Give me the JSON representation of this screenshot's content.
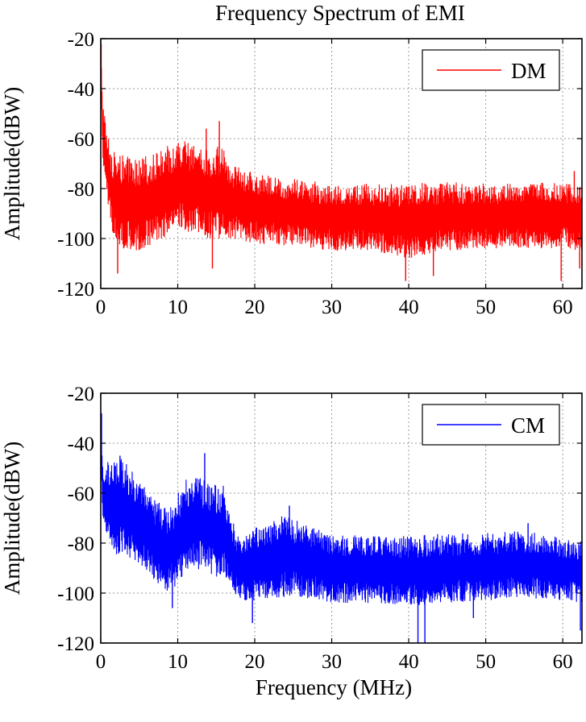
{
  "figure": {
    "title": "Frequency Spectrum of EMI",
    "xlabel": "Frequency (MHz)"
  },
  "chart_data": [
    {
      "type": "line",
      "name": "DM",
      "color": "#ff0000",
      "title": "Frequency Spectrum of EMI",
      "ylabel": "Amplitude(dBW)",
      "xlabel": "",
      "xlim": [
        0,
        62.5
      ],
      "ylim": [
        -120,
        -20
      ],
      "xticks": [
        0,
        10,
        20,
        30,
        40,
        50,
        60
      ],
      "yticks": [
        -20,
        -40,
        -60,
        -80,
        -100,
        -120
      ],
      "xtick_labels": [
        "0",
        "10",
        "20",
        "30",
        "40",
        "50",
        "60"
      ],
      "ytick_labels": [
        "-20",
        "-40",
        "-60",
        "-80",
        "-100",
        "-120"
      ],
      "grid": true,
      "legend": {
        "position": "top-right",
        "entries": [
          "DM"
        ]
      },
      "series": [
        {
          "name": "DM",
          "color": "#ff0000",
          "envelope": {
            "x": [
              0,
              0.3,
              0.7,
              1.5,
              3,
              5,
              8,
              10,
              11,
              12,
              14,
              15,
              16,
              17,
              20,
              25,
              30,
              35,
              40,
              45,
              50,
              55,
              60,
              62.5
            ],
            "upper": [
              -25,
              -45,
              -55,
              -65,
              -67,
              -68,
              -64,
              -61,
              -60,
              -62,
              -65,
              -63,
              -64,
              -70,
              -74,
              -76,
              -78,
              -78,
              -78,
              -77,
              -78,
              -78,
              -77,
              -79
            ],
            "lower": [
              -40,
              -70,
              -80,
              -100,
              -105,
              -105,
              -100,
              -98,
              -97,
              -98,
              -100,
              -100,
              -100,
              -100,
              -102,
              -103,
              -105,
              -105,
              -108,
              -105,
              -104,
              -104,
              -104,
              -105
            ]
          },
          "peaks": [
            {
              "x": 0.05,
              "y": -22
            },
            {
              "x": 15.4,
              "y": -53
            },
            {
              "x": 13.7,
              "y": -56
            },
            {
              "x": 61.5,
              "y": -73
            }
          ],
          "dips": [
            {
              "x": 2.2,
              "y": -114
            },
            {
              "x": 14.5,
              "y": -112
            },
            {
              "x": 39.6,
              "y": -117
            },
            {
              "x": 43.2,
              "y": -115
            },
            {
              "x": 59.8,
              "y": -117
            },
            {
              "x": 62.2,
              "y": -112
            }
          ]
        }
      ]
    },
    {
      "type": "line",
      "name": "CM",
      "color": "#0000ff",
      "title": "",
      "ylabel": "Amplitude(dBW)",
      "xlabel": "Frequency (MHz)",
      "xlim": [
        0,
        62.5
      ],
      "ylim": [
        -120,
        -20
      ],
      "xticks": [
        0,
        10,
        20,
        30,
        40,
        50,
        60
      ],
      "yticks": [
        -20,
        -40,
        -60,
        -80,
        -100,
        -120
      ],
      "xtick_labels": [
        "0",
        "10",
        "20",
        "30",
        "40",
        "50",
        "60"
      ],
      "ytick_labels": [
        "-20",
        "-40",
        "-60",
        "-80",
        "-100",
        "-120"
      ],
      "grid": true,
      "legend": {
        "position": "top-right",
        "entries": [
          "CM"
        ]
      },
      "series": [
        {
          "name": "CM",
          "color": "#0000ff",
          "envelope": {
            "x": [
              0,
              0.3,
              1,
              2,
              3,
              5,
              7,
              9,
              10,
              11,
              12,
              14,
              16,
              17,
              18,
              20,
              23,
              25,
              30,
              35,
              40,
              45,
              50,
              55,
              60,
              62.5
            ],
            "upper": [
              -30,
              -52,
              -46,
              -45,
              -47,
              -55,
              -62,
              -66,
              -60,
              -54,
              -53,
              -55,
              -57,
              -70,
              -78,
              -74,
              -69,
              -70,
              -76,
              -77,
              -77,
              -76,
              -76,
              -75,
              -78,
              -79
            ],
            "lower": [
              -55,
              -70,
              -80,
              -85,
              -85,
              -88,
              -95,
              -100,
              -96,
              -92,
              -90,
              -92,
              -95,
              -98,
              -103,
              -103,
              -102,
              -101,
              -104,
              -104,
              -105,
              -104,
              -103,
              -102,
              -103,
              -104
            ]
          },
          "peaks": [
            {
              "x": 0.1,
              "y": -28
            },
            {
              "x": 13.5,
              "y": -44
            },
            {
              "x": 2.5,
              "y": -45
            },
            {
              "x": 24.5,
              "y": -65
            },
            {
              "x": 55.5,
              "y": -72
            }
          ],
          "dips": [
            {
              "x": 9.3,
              "y": -106
            },
            {
              "x": 19.7,
              "y": -112
            },
            {
              "x": 41.2,
              "y": -120
            },
            {
              "x": 42.1,
              "y": -120
            },
            {
              "x": 48.4,
              "y": -110
            },
            {
              "x": 62.3,
              "y": -115
            }
          ]
        }
      ]
    }
  ]
}
